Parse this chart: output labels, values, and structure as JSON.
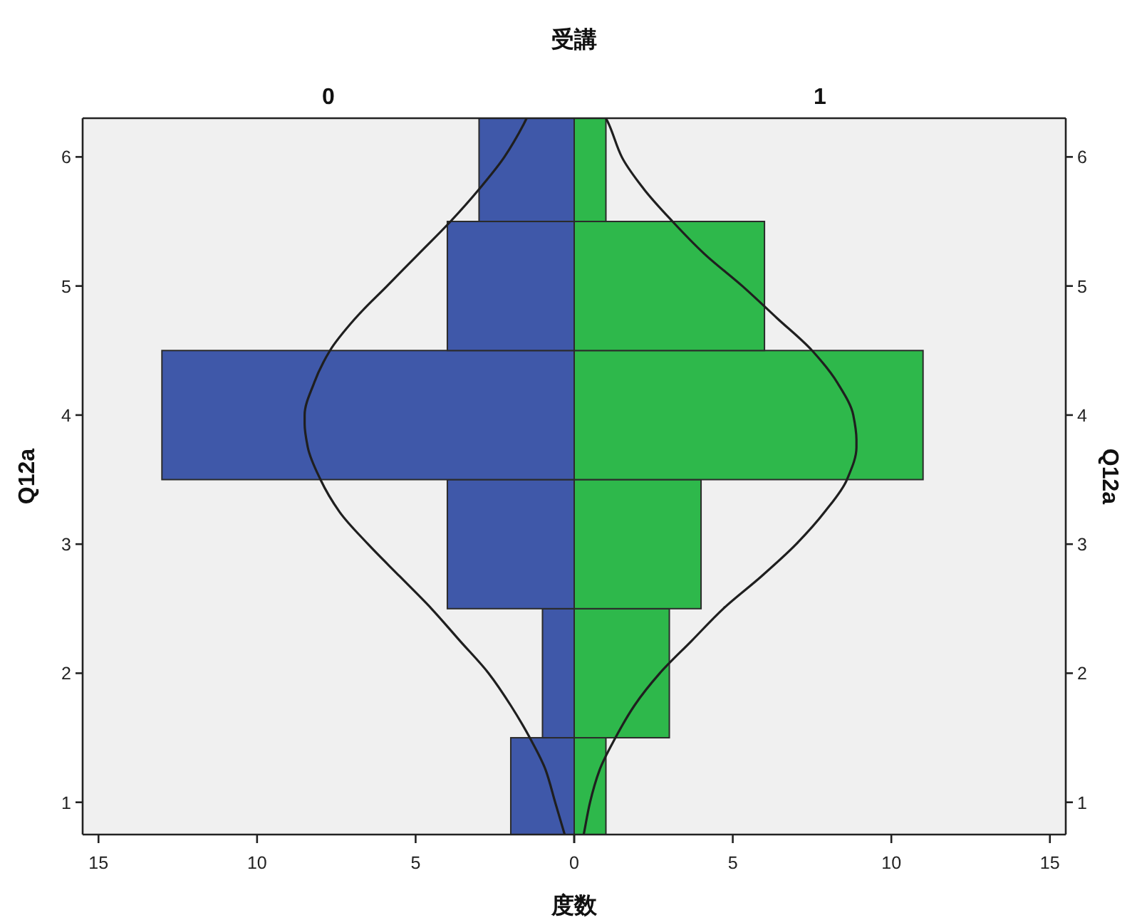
{
  "chart_data": [
    {
      "type": "histogram",
      "orientation": "horizontal",
      "title": "受講",
      "subtitle": "0",
      "xlabel": "度数",
      "ylabel": "Q12a",
      "xlim": [
        15.5,
        0
      ],
      "xticks": [
        15,
        10,
        5,
        0
      ],
      "ylim": [
        0.75,
        6.3
      ],
      "yticks": [
        1,
        2,
        3,
        4,
        5,
        6
      ],
      "series": [
        {
          "color": "#3f58a9",
          "bins": [
            0.5,
            1.5,
            2.5,
            3.5,
            4.5,
            5.5,
            6.5
          ],
          "values": [
            2,
            1,
            4,
            13,
            4,
            3
          ]
        },
        {
          "type": "line",
          "color": "#1f1f1f",
          "x": [
            0.75,
            1,
            1.25,
            1.5,
            1.75,
            2,
            2.25,
            2.5,
            2.75,
            3,
            3.25,
            3.5,
            3.75,
            3.93,
            4,
            4.25,
            4.5,
            4.75,
            5,
            5.25,
            5.5,
            5.75,
            6,
            6.25,
            6.3
          ],
          "values": [
            0.3,
            0.6,
            0.9,
            1.4,
            2.0,
            2.7,
            3.6,
            4.5,
            5.5,
            6.5,
            7.4,
            8.0,
            8.4,
            8.5,
            8.5,
            8.2,
            7.7,
            6.9,
            5.9,
            4.9,
            3.9,
            3.0,
            2.2,
            1.6,
            1.5
          ]
        }
      ]
    },
    {
      "type": "histogram",
      "orientation": "horizontal",
      "subtitle": "1",
      "ylabel": "Q12a",
      "xlim": [
        0,
        15.5
      ],
      "xticks": [
        {
          "value": 0,
          "label": null
        },
        5,
        10,
        15
      ],
      "ylim": [
        0.75,
        6.3
      ],
      "yticks": [
        1,
        2,
        3,
        4,
        5,
        6
      ],
      "series": [
        {
          "color": "#2eb84b",
          "bins": [
            0.5,
            1.5,
            2.5,
            3.5,
            4.5,
            5.5,
            6.5
          ],
          "values": [
            1,
            3,
            4,
            11,
            6,
            1
          ]
        },
        {
          "type": "line",
          "color": "#1f1f1f",
          "x": [
            0.75,
            1,
            1.25,
            1.5,
            1.75,
            2,
            2.25,
            2.5,
            2.75,
            3,
            3.25,
            3.5,
            3.75,
            3.81,
            4,
            4.25,
            4.5,
            4.75,
            5,
            5.25,
            5.5,
            5.75,
            6,
            6.25,
            6.3
          ],
          "values": [
            0.3,
            0.5,
            0.8,
            1.3,
            1.9,
            2.7,
            3.7,
            4.7,
            5.9,
            7.0,
            7.9,
            8.6,
            8.9,
            8.9,
            8.8,
            8.3,
            7.5,
            6.4,
            5.3,
            4.1,
            3.1,
            2.2,
            1.5,
            1.1,
            1.0
          ]
        }
      ]
    }
  ]
}
